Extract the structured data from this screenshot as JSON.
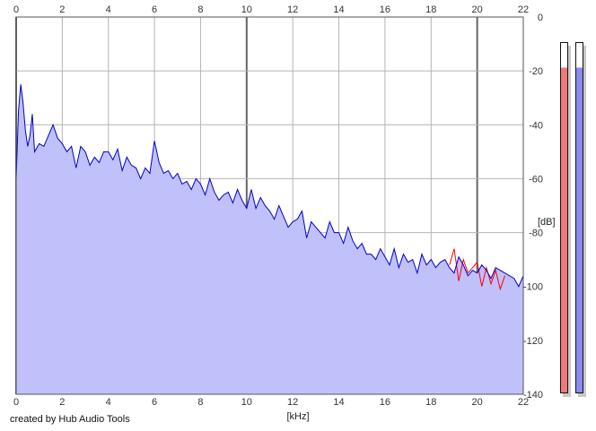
{
  "credit": "created by Hub Audio Tools",
  "meters": {
    "left_color": "#f07878",
    "right_color": "#8a8af0",
    "left_level": 0.93,
    "right_level": 0.93
  },
  "chart_data": {
    "type": "area",
    "xlabel": "[kHz]",
    "ylabel": "[dB]",
    "xlim": [
      0,
      22
    ],
    "ylim": [
      -140,
      0
    ],
    "x_ticks": [
      "0",
      "2",
      "4",
      "6",
      "8",
      "10",
      "12",
      "14",
      "16",
      "18",
      "20",
      "22"
    ],
    "y_ticks": [
      "0",
      "-20",
      "-40",
      "-60",
      "-80",
      "-100",
      "-120",
      "-140"
    ],
    "grid": true,
    "fill_color": "#c0c0fa",
    "series": [
      {
        "color": "#0000c8",
        "x": [
          0,
          0.1,
          0.2,
          0.3,
          0.4,
          0.5,
          0.6,
          0.7,
          0.8,
          1,
          1.2,
          1.4,
          1.6,
          1.8,
          2,
          2.2,
          2.4,
          2.6,
          2.8,
          3,
          3.2,
          3.4,
          3.6,
          3.8,
          4,
          4.2,
          4.4,
          4.6,
          4.8,
          5,
          5.2,
          5.4,
          5.6,
          5.8,
          6,
          6.2,
          6.4,
          6.6,
          6.8,
          7,
          7.2,
          7.4,
          7.6,
          7.8,
          8,
          8.2,
          8.4,
          8.6,
          8.8,
          9,
          9.2,
          9.4,
          9.6,
          9.8,
          10,
          10.2,
          10.4,
          10.6,
          10.8,
          11,
          11.2,
          11.4,
          11.6,
          11.8,
          12,
          12.2,
          12.4,
          12.6,
          12.8,
          13,
          13.2,
          13.4,
          13.6,
          13.8,
          14,
          14.2,
          14.4,
          14.6,
          14.8,
          15,
          15.2,
          15.4,
          15.6,
          15.8,
          16,
          16.2,
          16.4,
          16.6,
          16.8,
          17,
          17.2,
          17.4,
          17.6,
          17.8,
          18,
          18.2,
          18.4,
          18.6,
          18.8,
          19,
          19.2,
          19.4,
          19.6,
          19.8,
          20,
          20.2,
          20.4,
          20.6,
          20.8,
          21,
          21.2,
          21.4,
          21.6,
          21.8,
          22
        ],
        "y": [
          -60,
          -35,
          -25,
          -32,
          -42,
          -48,
          -44,
          -36,
          -50,
          -47,
          -48,
          -44,
          -40,
          -45,
          -47,
          -50,
          -48,
          -56,
          -48,
          -50,
          -55,
          -52,
          -54,
          -50,
          -50,
          -53,
          -49,
          -57,
          -52,
          -55,
          -56,
          -60,
          -56,
          -58,
          -46,
          -54,
          -58,
          -57,
          -60,
          -58,
          -62,
          -61,
          -64,
          -60,
          -62,
          -66,
          -60,
          -65,
          -68,
          -66,
          -65,
          -69,
          -64,
          -68,
          -71,
          -64,
          -71,
          -67,
          -70,
          -72,
          -75,
          -70,
          -74,
          -78,
          -76,
          -75,
          -72,
          -82,
          -76,
          -78,
          -80,
          -82,
          -76,
          -80,
          -80,
          -84,
          -78,
          -83,
          -86,
          -84,
          -88,
          -88,
          -90,
          -86,
          -89,
          -92,
          -86,
          -93,
          -88,
          -91,
          -90,
          -95,
          -88,
          -92,
          -90,
          -93,
          -91,
          -90,
          -93,
          -95,
          -89,
          -92,
          -96,
          -94,
          -95,
          -92,
          -94,
          -97,
          -93,
          -94,
          -95,
          -96,
          -97,
          -100,
          -96
        ]
      },
      {
        "color": "#ff0000",
        "x": [
          18.8,
          19,
          19.2,
          19.4,
          19.6,
          19.8,
          20,
          20.2,
          20.4,
          20.6,
          20.8,
          21,
          21.2
        ],
        "y": [
          -92,
          -86,
          -98,
          -90,
          -95,
          -93,
          -91,
          -100,
          -93,
          -99,
          -94,
          -101,
          -96
        ]
      }
    ]
  }
}
